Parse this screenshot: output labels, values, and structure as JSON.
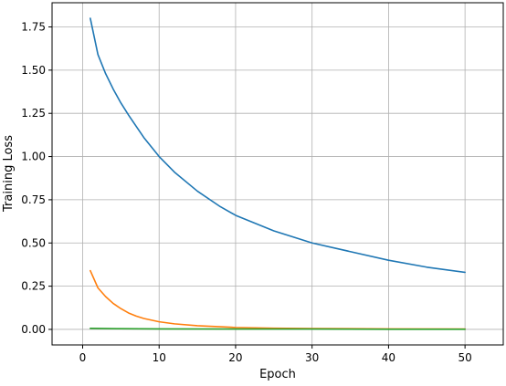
{
  "chart_data": {
    "type": "line",
    "title": "",
    "xlabel": "Epoch",
    "ylabel": "Training Loss",
    "xlim": [
      -4.0,
      55.0
    ],
    "ylim": [
      -0.09,
      1.89
    ],
    "xticks": [
      0,
      10,
      20,
      30,
      40,
      50
    ],
    "xtick_labels": [
      "0",
      "10",
      "20",
      "30",
      "40",
      "50"
    ],
    "yticks": [
      0.0,
      0.25,
      0.5,
      0.75,
      1.0,
      1.25,
      1.5,
      1.75
    ],
    "ytick_labels": [
      "0.00",
      "0.25",
      "0.50",
      "0.75",
      "1.00",
      "1.25",
      "1.50",
      "1.75"
    ],
    "grid": true,
    "legend": "none",
    "series": [
      {
        "color": "#1f77b4",
        "x": [
          1,
          2,
          3,
          4,
          5,
          6,
          8,
          10,
          12,
          15,
          18,
          20,
          25,
          30,
          35,
          40,
          45,
          50
        ],
        "values": [
          1.8,
          1.59,
          1.48,
          1.39,
          1.31,
          1.24,
          1.11,
          1.0,
          0.91,
          0.8,
          0.71,
          0.66,
          0.57,
          0.5,
          0.45,
          0.4,
          0.36,
          0.33
        ]
      },
      {
        "color": "#ff7f0e",
        "x": [
          1,
          2,
          3,
          4,
          5,
          6,
          7,
          8,
          10,
          12,
          15,
          20,
          25,
          30,
          40,
          50
        ],
        "values": [
          0.34,
          0.24,
          0.19,
          0.15,
          0.12,
          0.095,
          0.077,
          0.063,
          0.044,
          0.032,
          0.021,
          0.011,
          0.007,
          0.005,
          0.003,
          0.002
        ]
      },
      {
        "color": "#2ca02c",
        "x": [
          1,
          5,
          10,
          20,
          30,
          40,
          50
        ],
        "values": [
          0.006,
          0.004,
          0.003,
          0.002,
          0.002,
          0.001,
          0.001
        ]
      }
    ]
  }
}
